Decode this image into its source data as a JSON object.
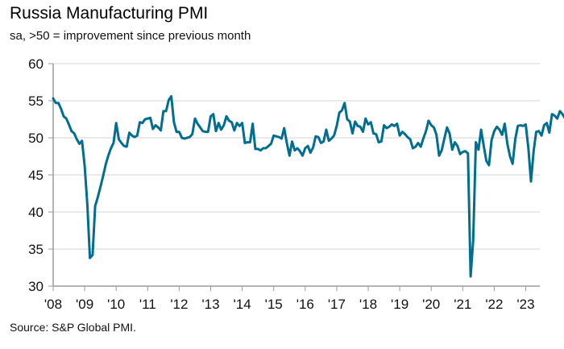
{
  "chart_data": {
    "type": "line",
    "title": "Russia Manufacturing PMI",
    "subtitle": "sa, >50 = improvement since previous month",
    "source": "Source: S&P Global PMI.",
    "xlabel": "",
    "ylabel": "",
    "ylim": [
      30,
      60
    ],
    "yticks": [
      30,
      35,
      40,
      45,
      50,
      55,
      60
    ],
    "xticks": [
      "'08",
      "'09",
      "'10",
      "'11",
      "'12",
      "'13",
      "'14",
      "'15",
      "'16",
      "'17",
      "'18",
      "'19",
      "'20",
      "'21",
      "'22",
      "'23"
    ],
    "x_start": "2008-01",
    "frequency": "monthly",
    "grid": true,
    "line_color": "#006E8C",
    "series": [
      {
        "name": "Russia Manufacturing PMI",
        "values": [
          55.3,
          54.7,
          54.7,
          53.9,
          52.9,
          52.6,
          51.8,
          50.9,
          50.6,
          49.8,
          49.2,
          49.6,
          46.2,
          41.0,
          33.8,
          34.2,
          40.8,
          42.0,
          43.4,
          44.8,
          46.4,
          47.6,
          48.6,
          49.3,
          52.0,
          49.8,
          49.3,
          48.9,
          48.8,
          50.7,
          50.3,
          50.1,
          50.3,
          52.1,
          52.0,
          52.5,
          52.6,
          52.7,
          51.2,
          51.7,
          51.4,
          51.0,
          53.6,
          53.6,
          55.1,
          55.6,
          52.1,
          50.8,
          50.8,
          50.0,
          49.9,
          50.0,
          50.1,
          50.5,
          52.6,
          51.9,
          51.4,
          50.9,
          50.8,
          50.8,
          52.9,
          53.2,
          50.9,
          52.0,
          51.1,
          51.7,
          52.9,
          52.3,
          52.1,
          51.0,
          52.0,
          51.6,
          52.0,
          49.3,
          49.4,
          49.4,
          51.9,
          48.5,
          48.5,
          48.3,
          48.6,
          48.6,
          48.9,
          49.2,
          50.3,
          50.2,
          50.1,
          49.9,
          51.3,
          49.3,
          47.6,
          49.5,
          48.3,
          48.6,
          48.2,
          47.6,
          48.6,
          48.9,
          48.0,
          48.7,
          50.2,
          50.1,
          49.3,
          49.5,
          51.1,
          49.6,
          49.9,
          50.3,
          51.6,
          53.4,
          53.7,
          54.7,
          52.5,
          52.2,
          50.6,
          52.2,
          51.6,
          51.5,
          50.8,
          52.6,
          51.8,
          52.1,
          50.6,
          50.5,
          49.4,
          49.5,
          51.7,
          51.3,
          51.5,
          51.8,
          51.6,
          51.9,
          50.3,
          50.8,
          50.5,
          50.1,
          49.8,
          48.6,
          48.8,
          49.3,
          48.8,
          49.9,
          50.9,
          52.3,
          51.7,
          51.4,
          50.4,
          47.6,
          48.3,
          49.9,
          51.4,
          50.6,
          48.4,
          49.4,
          48.9,
          47.8,
          48.1,
          48.2,
          47.9,
          31.3,
          36.2,
          49.4,
          48.4,
          51.1,
          48.9,
          46.9,
          46.3,
          49.7,
          50.9,
          51.5,
          51.1,
          50.4,
          51.9,
          49.2,
          47.5,
          46.5,
          49.8,
          51.6,
          51.7,
          51.6,
          51.8,
          48.6,
          44.1,
          48.2,
          50.8,
          50.9,
          50.3,
          51.7,
          52.0,
          50.7,
          53.2,
          53.0,
          52.6,
          53.6,
          53.2,
          52.6,
          53.5,
          52.6
        ]
      }
    ]
  }
}
